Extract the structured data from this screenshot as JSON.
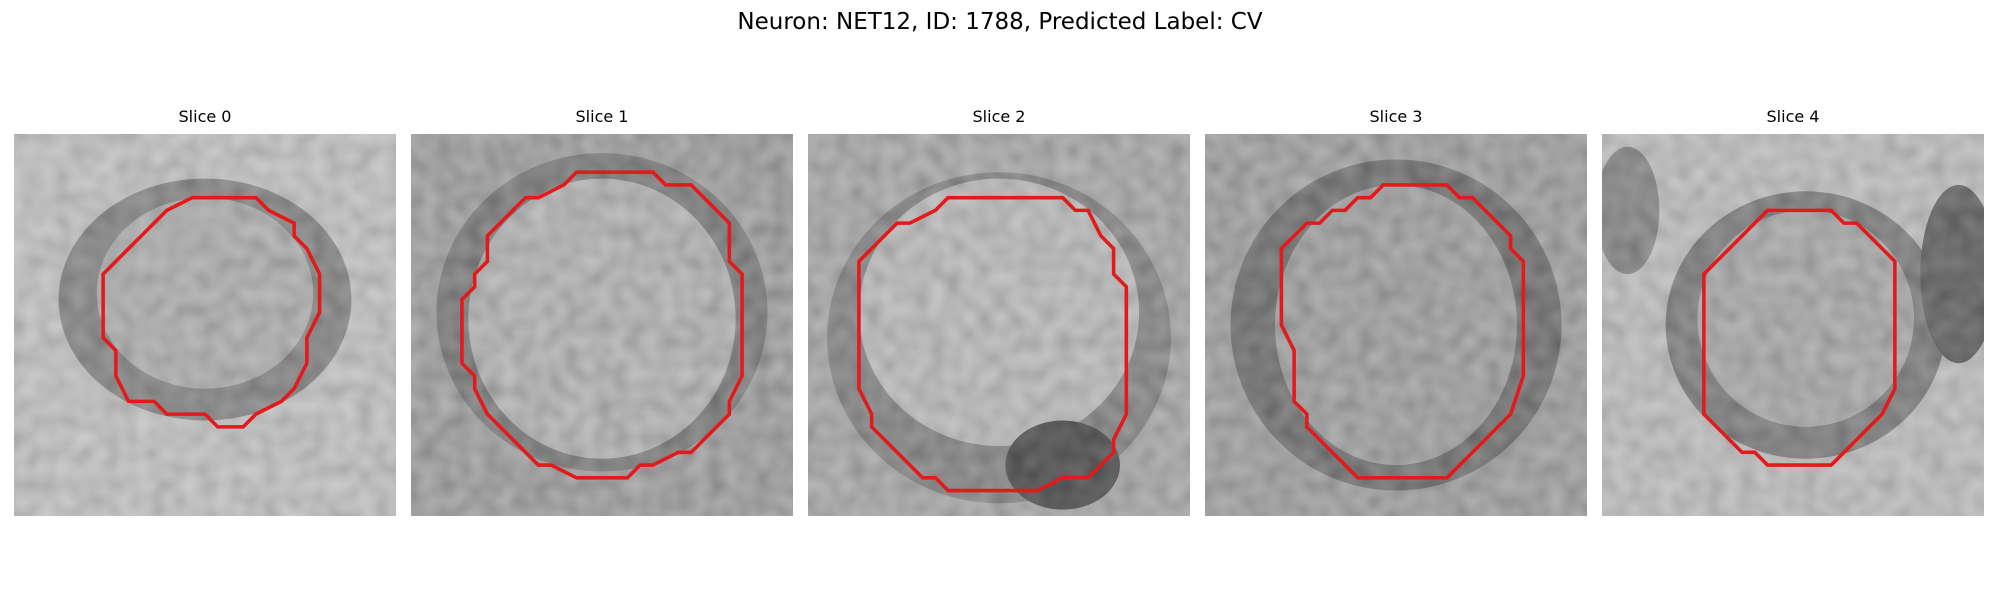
{
  "figure": {
    "title": "Neuron: NET12, ID: 1788, Predicted Label: CV"
  },
  "slices": [
    {
      "label": "Slice 0"
    },
    {
      "label": "Slice 1"
    },
    {
      "label": "Slice 2"
    },
    {
      "label": "Slice 3"
    },
    {
      "label": "Slice 4"
    }
  ],
  "colors": {
    "contour": "#e31a1c",
    "background": "#ffffff"
  }
}
